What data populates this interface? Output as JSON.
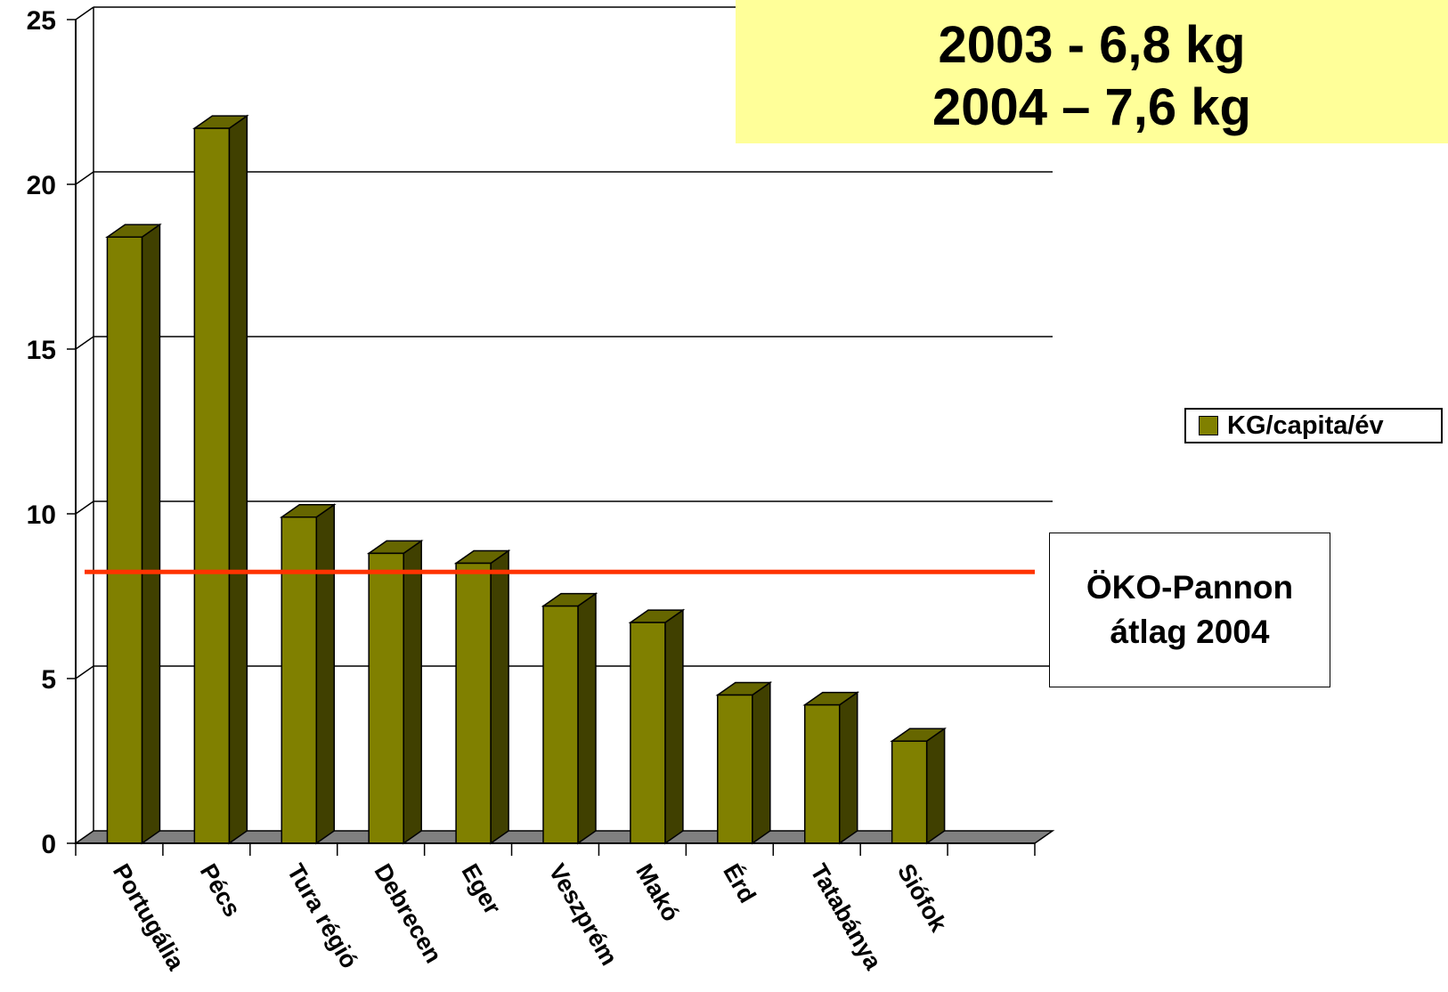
{
  "chart_data": {
    "type": "bar",
    "categories": [
      "Portugália",
      "Pécs",
      "Tura régió",
      "Debrecen",
      "Eger",
      "Veszprém",
      "Makó",
      "Érd",
      "Tatabánya",
      "Siófok"
    ],
    "series": [
      {
        "name": "KG/capita/év",
        "values": [
          18.4,
          21.7,
          9.9,
          8.8,
          8.5,
          7.2,
          6.7,
          4.5,
          4.2,
          3.1
        ]
      }
    ],
    "ylim": [
      0,
      25
    ],
    "yticks": [
      "0",
      "5",
      "10",
      "15",
      "20",
      "25"
    ],
    "grid": true,
    "bar_3d": true,
    "legend_position": "right",
    "colors": {
      "bar_front": "#808000",
      "bar_side": "#404000",
      "bar_top": "#666600",
      "floor": "#808080",
      "reference_line": "#ff3300",
      "title_box": "#ffff99"
    },
    "reference_line": {
      "value": 8.1,
      "label_lines": [
        "ÖKO-Pannon",
        "átlag 2004"
      ]
    },
    "title_lines": [
      "2003 - 6,8 kg",
      "2004 – 7,6 kg"
    ]
  }
}
